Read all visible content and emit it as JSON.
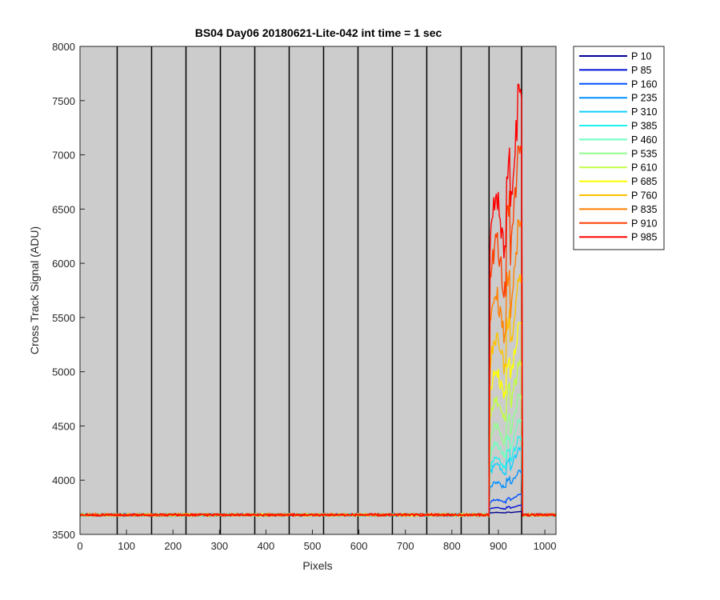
{
  "chart_data": {
    "type": "line",
    "title": "BS04 Day06 20180621-Lite-042 int time = 1 sec",
    "xlabel": "Pixels",
    "ylabel": "Cross Track Signal (ADU)",
    "xlim": [
      0,
      1024
    ],
    "ylim": [
      3500,
      8000
    ],
    "xticks": [
      0,
      100,
      200,
      300,
      400,
      500,
      600,
      700,
      800,
      900,
      1000
    ],
    "yticks": [
      3500,
      4000,
      4500,
      5000,
      5500,
      6000,
      6500,
      7000,
      7500,
      8000
    ],
    "background_color": "#cccccc",
    "grid": false,
    "vertical_dividers": [
      80,
      154,
      228,
      302,
      376,
      450,
      524,
      598,
      672,
      746,
      820,
      880,
      950
    ],
    "legend_position": "outside-top-right",
    "baseline_value": 3680,
    "signal_region": {
      "start": 882,
      "end": 950
    },
    "series": [
      {
        "name": "P 10",
        "color": "#00008f",
        "peak": 3710
      },
      {
        "name": "P 85",
        "color": "#0010d8",
        "peak": 3770
      },
      {
        "name": "P 160",
        "color": "#0050ff",
        "peak": 3870
      },
      {
        "name": "P 235",
        "color": "#0090ff",
        "peak": 4090
      },
      {
        "name": "P 310",
        "color": "#10d0ff",
        "peak": 4300
      },
      {
        "name": "P 385",
        "color": "#20f0f0",
        "peak": 4400
      },
      {
        "name": "P 460",
        "color": "#70ffc0",
        "peak": 4560
      },
      {
        "name": "P 535",
        "color": "#90ff90",
        "peak": 4790
      },
      {
        "name": "P 610",
        "color": "#c0ff40",
        "peak": 5100
      },
      {
        "name": "P 685",
        "color": "#ffff00",
        "peak": 5450
      },
      {
        "name": "P 760",
        "color": "#ffc000",
        "peak": 5900
      },
      {
        "name": "P 835",
        "color": "#ff8000",
        "peak": 6400
      },
      {
        "name": "P 910",
        "color": "#ff4000",
        "peak": 7080
      },
      {
        "name": "P 985",
        "color": "#ff0000",
        "peak": 7650
      }
    ]
  }
}
